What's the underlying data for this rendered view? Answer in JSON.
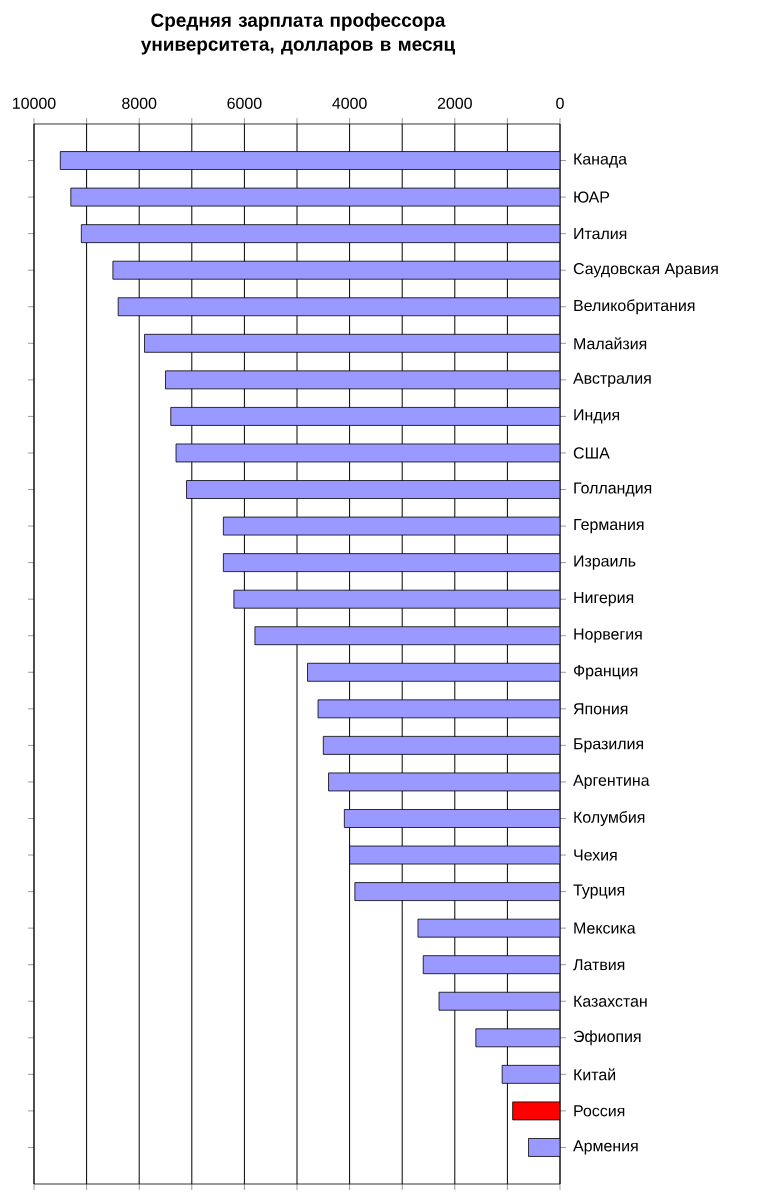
{
  "chart_data": {
    "type": "bar",
    "orientation": "horizontal",
    "title": "Средняя зарплата профессора университета, долларов в месяц",
    "categories": [
      "Канада",
      "ЮАР",
      "Италия",
      "Саудовская Аравия",
      "Великобритания",
      "Малайзия",
      "Австралия",
      "Индия",
      "США",
      "Голландия",
      "Германия",
      "Израиль",
      "Нигерия",
      "Норвегия",
      "Франция",
      "Япония",
      "Бразилия",
      "Аргентина",
      "Колумбия",
      "Чехия",
      "Турция",
      "Мексика",
      "Латвия",
      "Казахстан",
      "Эфиопия",
      "Китай",
      "Россия",
      "Армения"
    ],
    "values": [
      9500,
      9300,
      9100,
      8500,
      8400,
      7900,
      7500,
      7400,
      7300,
      7100,
      6400,
      6400,
      6200,
      5800,
      4800,
      4600,
      4500,
      4400,
      4100,
      4000,
      3900,
      2700,
      2600,
      2300,
      1600,
      1100,
      900,
      600
    ],
    "colors": [
      "#9999ff",
      "#9999ff",
      "#9999ff",
      "#9999ff",
      "#9999ff",
      "#9999ff",
      "#9999ff",
      "#9999ff",
      "#9999ff",
      "#9999ff",
      "#9999ff",
      "#9999ff",
      "#9999ff",
      "#9999ff",
      "#9999ff",
      "#9999ff",
      "#9999ff",
      "#9999ff",
      "#9999ff",
      "#9999ff",
      "#9999ff",
      "#9999ff",
      "#9999ff",
      "#9999ff",
      "#9999ff",
      "#9999ff",
      "#ff0000",
      "#9999ff"
    ],
    "xlim": [
      10000,
      0
    ],
    "xticks": [
      10000,
      {
        "value": 9000,
        "label": null
      },
      8000,
      {
        "value": 7000,
        "label": null
      },
      6000,
      {
        "value": 5000,
        "label": null
      },
      4000,
      {
        "value": 3000,
        "label": null
      },
      2000,
      {
        "value": 1000,
        "label": null
      },
      0
    ],
    "grid": "x"
  }
}
